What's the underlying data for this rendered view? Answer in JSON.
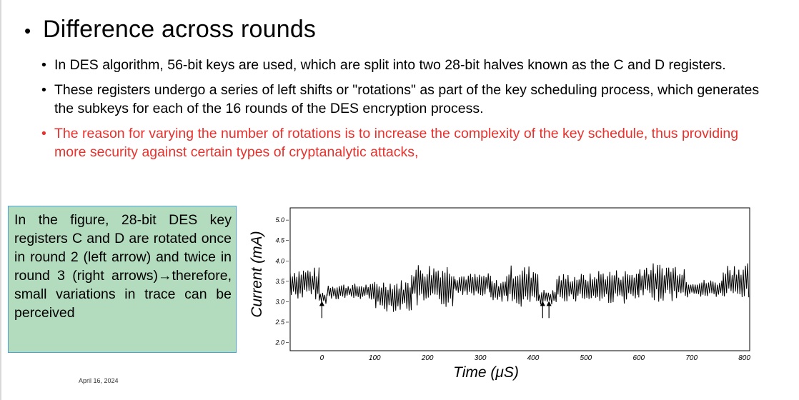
{
  "slide": {
    "title": "Difference across rounds",
    "bullets": [
      {
        "text": "In DES algorithm, 56-bit keys are used, which are split into two 28-bit halves known as the C and D registers.",
        "color": "#000000"
      },
      {
        "text": "These registers undergo a series of left shifts or \"rotations\" as part of the key scheduling process, which generates the subkeys for each of the 16 rounds of the DES encryption process.",
        "color": "#000000"
      },
      {
        "text": "The reason for varying the number of rotations is to increase the complexity of the key schedule, thus providing more security against certain types of cryptanalytic attacks,",
        "color": "#e8312c"
      }
    ],
    "note": "In the figure, 28-bit DES key registers C and D are rotated once in round 2 (left arrow) and twice in round 3 (right arrows)→therefore, small variations in trace can be perceived",
    "date": "April 16, 2024",
    "note_bg_color": "#b3dbbd",
    "accent_red": "#e8312c"
  },
  "chart_data": {
    "type": "line",
    "xlabel": "Time (μS)",
    "ylabel": "Current (mA)",
    "xlim": [
      -60,
      810
    ],
    "ylim": [
      1.8,
      5.3
    ],
    "xticks": [
      "0",
      "100",
      "200",
      "300",
      "400",
      "500",
      "600",
      "700",
      "800"
    ],
    "yticks": [
      "2.0",
      "2.5",
      "3.0",
      "3.5",
      "4.0",
      "4.5",
      "5.0"
    ],
    "grid": false,
    "arrows": [
      {
        "x": 0,
        "y_tail": 2.6,
        "y_head": 3.0
      },
      {
        "x": 418,
        "y_tail": 2.6,
        "y_head": 3.0
      },
      {
        "x": 430,
        "y_tail": 2.6,
        "y_head": 3.0
      }
    ],
    "segments": [
      {
        "x0": -60,
        "x1": -5,
        "lo": 3.05,
        "hi": 3.85
      },
      {
        "x0": -5,
        "x1": 10,
        "lo": 2.95,
        "hi": 3.25
      },
      {
        "x0": 10,
        "x1": 100,
        "lo": 3.05,
        "hi": 3.45
      },
      {
        "x0": 100,
        "x1": 170,
        "lo": 2.75,
        "hi": 3.55
      },
      {
        "x0": 170,
        "x1": 250,
        "lo": 2.85,
        "hi": 3.95
      },
      {
        "x0": 250,
        "x1": 320,
        "lo": 3.15,
        "hi": 3.7
      },
      {
        "x0": 320,
        "x1": 350,
        "lo": 3.0,
        "hi": 3.55
      },
      {
        "x0": 350,
        "x1": 410,
        "lo": 2.85,
        "hi": 3.9
      },
      {
        "x0": 410,
        "x1": 445,
        "lo": 2.9,
        "hi": 3.3
      },
      {
        "x0": 445,
        "x1": 520,
        "lo": 3.0,
        "hi": 3.7
      },
      {
        "x0": 520,
        "x1": 600,
        "lo": 2.95,
        "hi": 3.8
      },
      {
        "x0": 600,
        "x1": 690,
        "lo": 3.0,
        "hi": 3.95
      },
      {
        "x0": 690,
        "x1": 760,
        "lo": 3.1,
        "hi": 3.55
      },
      {
        "x0": 760,
        "x1": 810,
        "lo": 3.05,
        "hi": 3.95
      }
    ]
  }
}
